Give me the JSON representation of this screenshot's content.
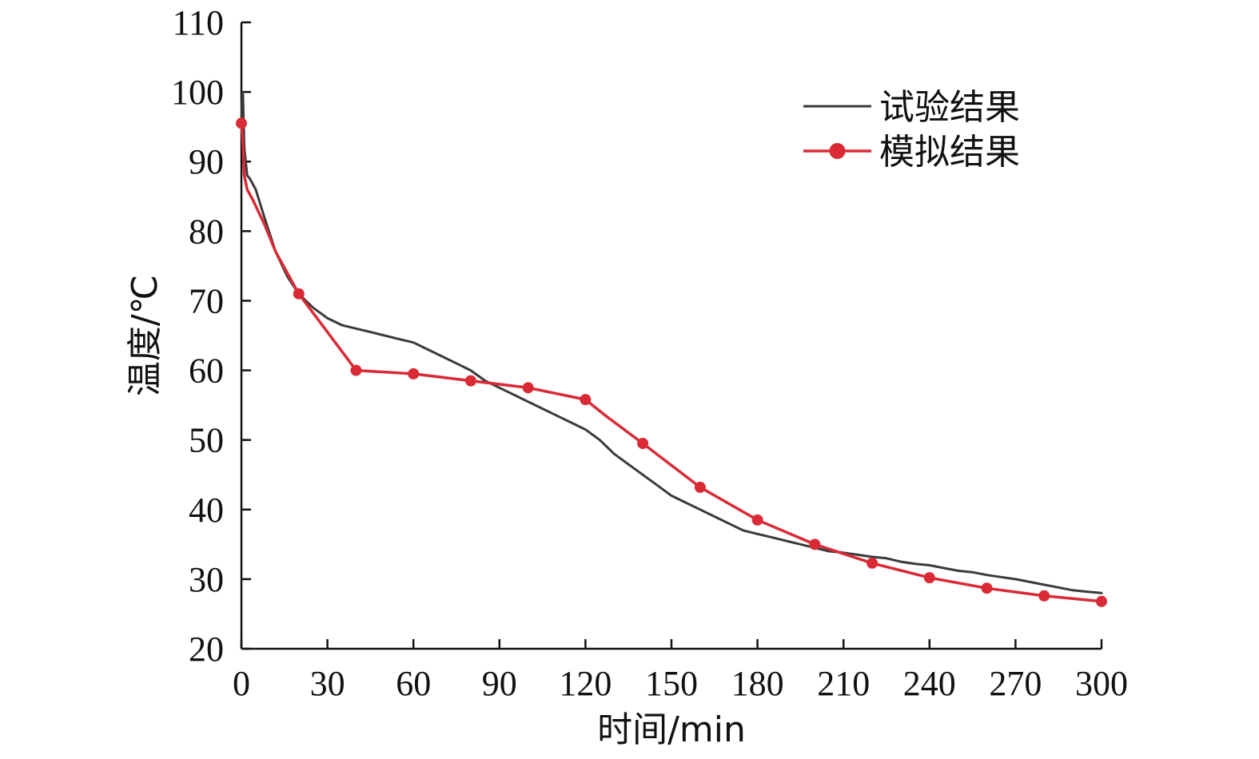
{
  "chart_data": {
    "type": "line",
    "xlabel": "时间/min",
    "ylabel": "温度/℃",
    "xlim": [
      0,
      300
    ],
    "ylim": [
      20,
      110
    ],
    "xticks": [
      "0",
      "30",
      "60",
      "90",
      "120",
      "150",
      "180",
      "210",
      "240",
      "270",
      "300"
    ],
    "yticks": [
      "20",
      "30",
      "40",
      "50",
      "60",
      "70",
      "80",
      "90",
      "100",
      "110"
    ],
    "grid": false,
    "legend_position": "top-right",
    "series": [
      {
        "name": "试验结果",
        "color": "#3a3a3a",
        "marker": "none",
        "x": [
          0,
          0.5,
          1,
          2,
          3,
          5,
          8,
          12,
          16,
          20,
          25,
          30,
          35,
          40,
          45,
          50,
          55,
          60,
          65,
          70,
          75,
          80,
          85,
          90,
          95,
          100,
          105,
          110,
          115,
          120,
          125,
          130,
          135,
          140,
          145,
          150,
          155,
          160,
          165,
          170,
          175,
          180,
          185,
          190,
          195,
          200,
          205,
          210,
          215,
          220,
          225,
          230,
          235,
          240,
          245,
          250,
          255,
          260,
          265,
          270,
          275,
          280,
          285,
          290,
          295,
          300
        ],
        "y": [
          96,
          100,
          92,
          88,
          87.5,
          86,
          82,
          77,
          73.5,
          71,
          69,
          67.5,
          66.5,
          66,
          65.5,
          65,
          64.5,
          64,
          63,
          62,
          61,
          60,
          58.5,
          57.5,
          56.5,
          55.5,
          54.5,
          53.5,
          52.5,
          51.5,
          50,
          48,
          46.5,
          45,
          43.5,
          42,
          41,
          40,
          39,
          38,
          37,
          36.5,
          36,
          35.5,
          35,
          34.5,
          34,
          33.8,
          33.5,
          33.2,
          33,
          32.5,
          32.2,
          32,
          31.6,
          31.2,
          31,
          30.6,
          30.3,
          30,
          29.6,
          29.2,
          28.8,
          28.4,
          28.2,
          28
        ]
      },
      {
        "name": "模拟结果",
        "color": "#d92a35",
        "marker": "circle",
        "x": [
          0,
          0.5,
          1,
          2,
          4,
          8,
          12,
          16,
          20,
          30,
          40,
          60,
          80,
          100,
          120,
          127,
          140,
          160,
          180,
          200,
          220,
          240,
          260,
          280,
          300
        ],
        "y": [
          95.5,
          93,
          88,
          86,
          84.5,
          81,
          77,
          74,
          71,
          65.5,
          60,
          59.5,
          58.5,
          57.5,
          55.8,
          53.5,
          49.5,
          43.2,
          38.5,
          35,
          32.3,
          30.2,
          28.7,
          27.6,
          26.8
        ],
        "marker_indices": [
          0,
          8,
          10,
          11,
          12,
          13,
          14,
          16,
          17,
          18,
          19,
          20,
          21,
          22,
          23,
          24
        ]
      }
    ]
  }
}
